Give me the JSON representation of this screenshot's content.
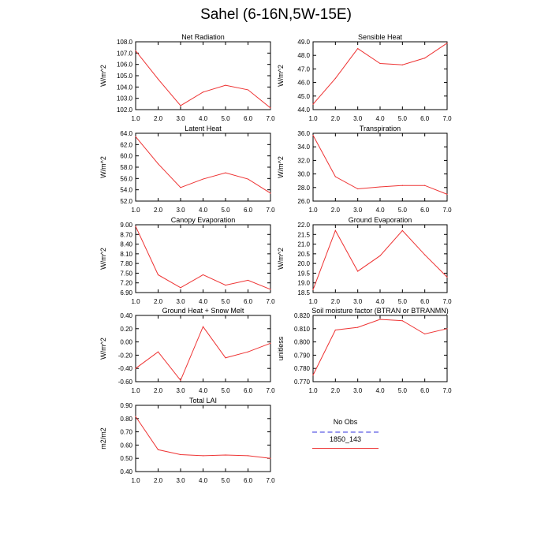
{
  "figure": {
    "title": "Sahel (6-16N,5W-15E)"
  },
  "legend": {
    "items": [
      {
        "label": "No Obs",
        "color": "#9999ee",
        "style": "dashed"
      },
      {
        "label": "1850_143",
        "color": "#ee3333",
        "style": "solid"
      }
    ]
  },
  "chart_data": [
    {
      "type": "line",
      "title": "Net Radiation",
      "ylabel": "W/m^2",
      "x": [
        1,
        2,
        3,
        4,
        5,
        6,
        7
      ],
      "xlim": [
        1,
        7
      ],
      "ylim": [
        102,
        108
      ],
      "xticks": [
        "1.0",
        "2.0",
        "3.0",
        "4.0",
        "5.0",
        "6.0",
        "7.0"
      ],
      "yticks": [
        "102.0",
        "103.0",
        "104.0",
        "105.0",
        "106.0",
        "107.0",
        "108.0"
      ],
      "series": [
        {
          "values": [
            107.2,
            104.7,
            102.35,
            103.55,
            104.15,
            103.75,
            102.15
          ]
        }
      ]
    },
    {
      "type": "line",
      "title": "Sensible Heat",
      "ylabel": "W/m^2",
      "x": [
        1,
        2,
        3,
        4,
        5,
        6,
        7
      ],
      "xlim": [
        1,
        7
      ],
      "ylim": [
        44,
        49
      ],
      "xticks": [
        "1.0",
        "2.0",
        "3.0",
        "4.0",
        "5.0",
        "6.0",
        "7.0"
      ],
      "yticks": [
        "44.0",
        "45.0",
        "46.0",
        "47.0",
        "48.0",
        "49.0"
      ],
      "series": [
        {
          "values": [
            44.4,
            46.3,
            48.5,
            47.4,
            47.3,
            47.8,
            48.9
          ]
        }
      ]
    },
    {
      "type": "line",
      "title": "Latent Heat",
      "ylabel": "W/m^2",
      "x": [
        1,
        2,
        3,
        4,
        5,
        6,
        7
      ],
      "xlim": [
        1,
        7
      ],
      "ylim": [
        52,
        64
      ],
      "xticks": [
        "1.0",
        "2.0",
        "3.0",
        "4.0",
        "5.0",
        "6.0",
        "7.0"
      ],
      "yticks": [
        "52.0",
        "54.0",
        "56.0",
        "58.0",
        "60.0",
        "62.0",
        "64.0"
      ],
      "series": [
        {
          "values": [
            63.4,
            58.6,
            54.4,
            55.9,
            57.0,
            55.9,
            53.4
          ]
        }
      ]
    },
    {
      "type": "line",
      "title": "Transpiration",
      "ylabel": "W/m^2",
      "x": [
        1,
        2,
        3,
        4,
        5,
        6,
        7
      ],
      "xlim": [
        1,
        7
      ],
      "ylim": [
        26,
        36
      ],
      "xticks": [
        "1.0",
        "2.0",
        "3.0",
        "4.0",
        "5.0",
        "6.0",
        "7.0"
      ],
      "yticks": [
        "26.0",
        "28.0",
        "30.0",
        "32.0",
        "34.0",
        "36.0"
      ],
      "series": [
        {
          "values": [
            35.7,
            29.6,
            27.8,
            28.1,
            28.3,
            28.3,
            27.0
          ]
        }
      ]
    },
    {
      "type": "line",
      "title": "Canopy Evaporation",
      "ylabel": "W/m^2",
      "x": [
        1,
        2,
        3,
        4,
        5,
        6,
        7
      ],
      "xlim": [
        1,
        7
      ],
      "ylim": [
        6.9,
        9.0
      ],
      "xticks": [
        "1.0",
        "2.0",
        "3.0",
        "4.0",
        "5.0",
        "6.0",
        "7.0"
      ],
      "yticks": [
        "6.90",
        "7.20",
        "7.50",
        "7.80",
        "8.10",
        "8.40",
        "8.70",
        "9.00"
      ],
      "series": [
        {
          "values": [
            8.95,
            7.45,
            7.05,
            7.45,
            7.13,
            7.28,
            7.0
          ]
        }
      ]
    },
    {
      "type": "line",
      "title": "Ground Evaporation",
      "ylabel": "W/m^2",
      "x": [
        1,
        2,
        3,
        4,
        5,
        6,
        7
      ],
      "xlim": [
        1,
        7
      ],
      "ylim": [
        18.5,
        22.0
      ],
      "xticks": [
        "1.0",
        "2.0",
        "3.0",
        "4.0",
        "5.0",
        "6.0",
        "7.0"
      ],
      "yticks": [
        "18.5",
        "19.0",
        "19.5",
        "20.0",
        "20.5",
        "21.0",
        "21.5",
        "22.0"
      ],
      "series": [
        {
          "values": [
            18.65,
            21.7,
            19.6,
            20.4,
            21.7,
            20.45,
            19.3
          ]
        }
      ]
    },
    {
      "type": "line",
      "title": "Ground Heat + Snow Melt",
      "ylabel": "W/m^2",
      "x": [
        1,
        2,
        3,
        4,
        5,
        6,
        7
      ],
      "xlim": [
        1,
        7
      ],
      "ylim": [
        -0.6,
        0.4
      ],
      "xticks": [
        "1.0",
        "2.0",
        "3.0",
        "4.0",
        "5.0",
        "6.0",
        "7.0"
      ],
      "yticks": [
        "-0.60",
        "-0.40",
        "-0.20",
        "0.00",
        "0.20",
        "0.40"
      ],
      "series": [
        {
          "values": [
            -0.4,
            -0.15,
            -0.58,
            0.23,
            -0.24,
            -0.15,
            -0.02
          ]
        }
      ]
    },
    {
      "type": "line",
      "title": "Soil moisture factor (BTRAN or BTRANMN)",
      "ylabel": "unitless",
      "x": [
        1,
        2,
        3,
        4,
        5,
        6,
        7
      ],
      "xlim": [
        1,
        7
      ],
      "ylim": [
        0.77,
        0.82
      ],
      "xticks": [
        "1.0",
        "2.0",
        "3.0",
        "4.0",
        "5.0",
        "6.0",
        "7.0"
      ],
      "yticks": [
        "0.770",
        "0.780",
        "0.790",
        "0.800",
        "0.810",
        "0.820"
      ],
      "series": [
        {
          "values": [
            0.775,
            0.809,
            0.811,
            0.817,
            0.816,
            0.806,
            0.81
          ]
        }
      ]
    },
    {
      "type": "line",
      "title": "Total LAI",
      "ylabel": "m2/m2",
      "x": [
        1,
        2,
        3,
        4,
        5,
        6,
        7
      ],
      "xlim": [
        1,
        7
      ],
      "ylim": [
        0.4,
        0.9
      ],
      "xticks": [
        "1.0",
        "2.0",
        "3.0",
        "4.0",
        "5.0",
        "6.0",
        "7.0"
      ],
      "yticks": [
        "0.40",
        "0.50",
        "0.60",
        "0.70",
        "0.80",
        "0.90"
      ],
      "series": [
        {
          "values": [
            0.815,
            0.565,
            0.528,
            0.52,
            0.525,
            0.52,
            0.5
          ]
        }
      ]
    }
  ]
}
